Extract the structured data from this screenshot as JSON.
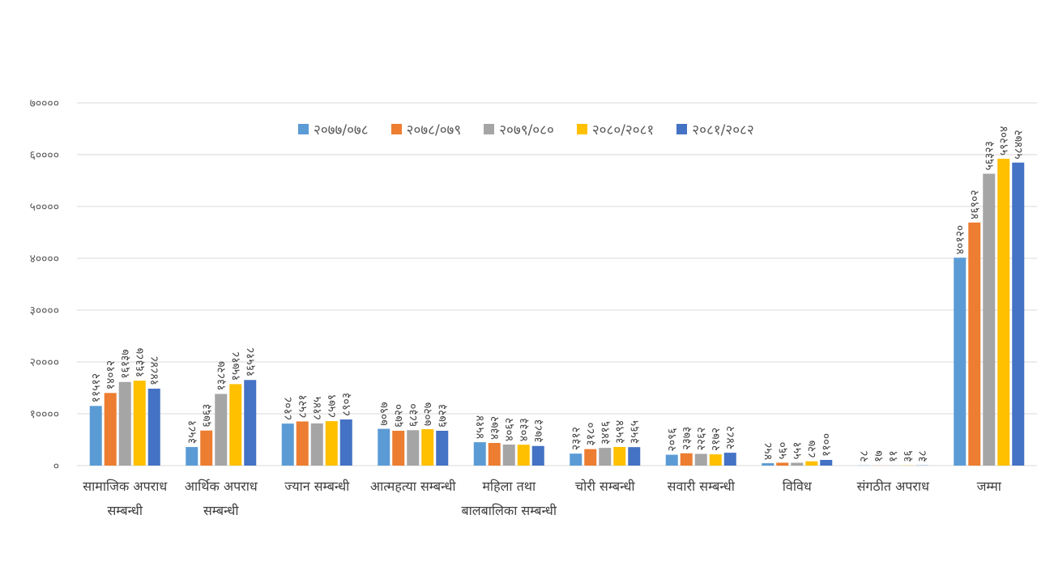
{
  "chart_data": {
    "type": "bar",
    "title": "",
    "xlabel": "",
    "ylabel": "",
    "ylim": [
      0,
      70000
    ],
    "yticks": [
      "०",
      "१००००",
      "२००००",
      "३००००",
      "४००००",
      "५००००",
      "६००००",
      "७००००"
    ],
    "ytick_values": [
      0,
      10000,
      20000,
      30000,
      40000,
      50000,
      60000,
      70000
    ],
    "grid": true,
    "legend_position": "top",
    "categories": [
      "सामाजिक अपराध सम्बन्धी",
      "आर्थिक अपराध सम्बन्धी",
      "ज्यान सम्बन्धी",
      "आत्महत्या सम्बन्धी",
      "महिला तथा बालबालिका सम्बन्धी",
      "चोरी सम्बन्धी",
      "सवारी सम्बन्धी",
      "विविध",
      "संगठीत अपराध",
      "जम्मा"
    ],
    "series": [
      {
        "name": "२०७७/०७८",
        "color": "#5B9BD5",
        "values": [
          11512,
          3581,
          8108,
          7097,
          4514,
          2312,
          2096,
          458,
          28,
          40120
        ]
      },
      {
        "name": "२०७८/०७९",
        "color": "#ED7D31",
        "values": [
          14012,
          6763,
          8521,
          6720,
          4372,
          3180,
          2373,
          560,
          17,
          46902
        ]
      },
      {
        "name": "२०७९/०८०",
        "color": "#A5A5A5",
        "values": [
          16137,
          13827,
          8145,
          6830,
          4062,
          3416,
          2262,
          551,
          11,
          56323
        ]
      },
      {
        "name": "२०८०/२०८१",
        "color": "#FFC000",
        "values": [
          16387,
          15718,
          8579,
          7027,
          4033,
          3594,
          2172,
          827,
          36,
          59204
        ]
      },
      {
        "name": "२०८१/२०८२",
        "color": "#4472C4",
        "values": [
          14848,
          16518,
          8903,
          6723,
          3783,
          3565,
          2482,
          1100,
          38,
          58472
        ]
      }
    ]
  }
}
